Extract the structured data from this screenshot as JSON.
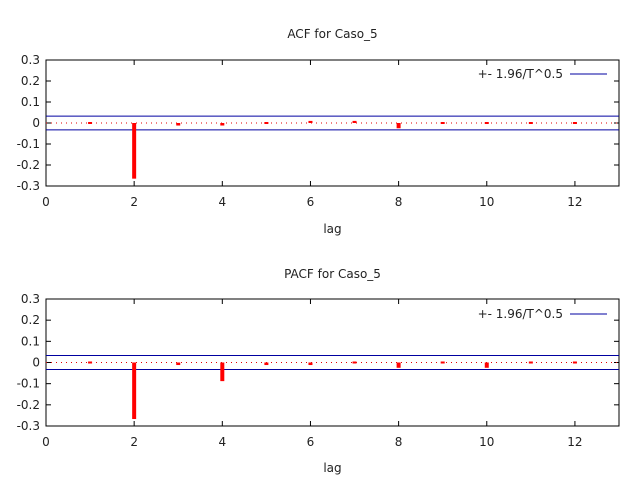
{
  "chart_data": [
    {
      "type": "bar",
      "title": "ACF for Caso_5",
      "xlabel": "lag",
      "ylabel": "",
      "xlim": [
        0,
        13
      ],
      "ylim": [
        -0.3,
        0.3
      ],
      "xticks": [
        0,
        2,
        4,
        6,
        8,
        10,
        12
      ],
      "yticks": [
        0.3,
        0.2,
        0.1,
        0,
        -0.1,
        -0.2,
        -0.3
      ],
      "ytick_labels": [
        "0.3",
        "0.2",
        "0.1",
        "0",
        "-0.1",
        "-0.2",
        "-0.3"
      ],
      "x": [
        1,
        2,
        3,
        4,
        5,
        6,
        7,
        8,
        9,
        10,
        11,
        12
      ],
      "values": [
        0.003,
        -0.265,
        -0.012,
        -0.012,
        -0.003,
        0.01,
        0.01,
        -0.025,
        -0.006,
        -0.003,
        0.005,
        0.006
      ],
      "bar_color": "#ff0000",
      "bands": {
        "label": "+- 1.96/T^0.5",
        "value": 0.033,
        "color": "#0000a0"
      },
      "zero_line": {
        "style": "dotted",
        "color": "#e00000"
      },
      "legend_position": "top-right"
    },
    {
      "type": "bar",
      "title": "PACF for Caso_5",
      "xlabel": "lag",
      "ylabel": "",
      "xlim": [
        0,
        13
      ],
      "ylim": [
        -0.3,
        0.3
      ],
      "xticks": [
        0,
        2,
        4,
        6,
        8,
        10,
        12
      ],
      "yticks": [
        0.3,
        0.2,
        0.1,
        0,
        -0.1,
        -0.2,
        -0.3
      ],
      "ytick_labels": [
        "0.3",
        "0.2",
        "0.1",
        "0",
        "-0.1",
        "-0.2",
        "-0.3"
      ],
      "x": [
        1,
        2,
        3,
        4,
        5,
        6,
        7,
        8,
        9,
        10,
        11,
        12
      ],
      "values": [
        0.003,
        -0.267,
        -0.012,
        -0.088,
        -0.012,
        -0.012,
        0.007,
        -0.025,
        -0.008,
        -0.025,
        0.002,
        -0.002
      ],
      "bar_color": "#ff0000",
      "bands": {
        "label": "+- 1.96/T^0.5",
        "value": 0.033,
        "color": "#0000a0"
      },
      "zero_line": {
        "style": "dotted",
        "color": "#e00000"
      },
      "legend_position": "top-right"
    }
  ]
}
